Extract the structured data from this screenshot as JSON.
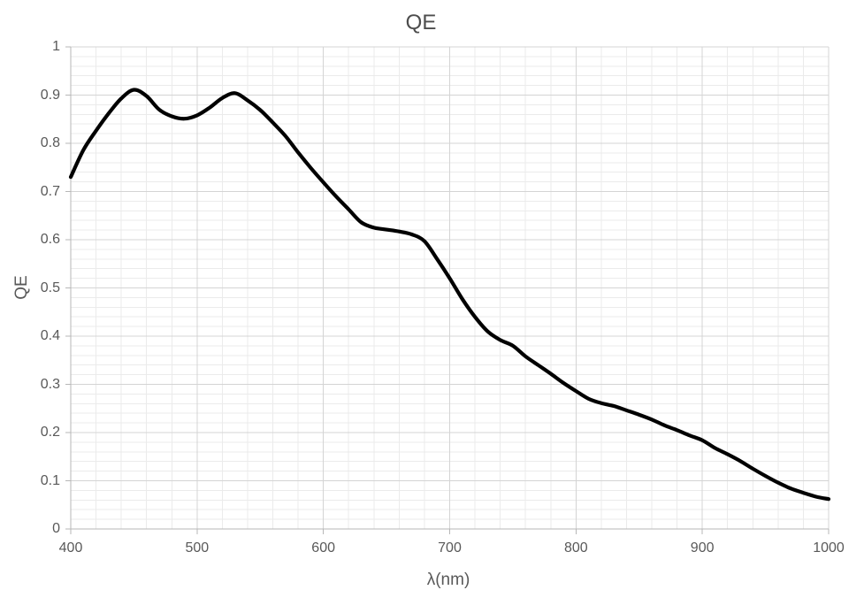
{
  "title": "QE",
  "axes": {
    "x": {
      "title": "λ(nm)",
      "min": 400,
      "max": 1000,
      "major_unit": 100,
      "minor_unit": 20,
      "tick_labels": [
        "400",
        "500",
        "600",
        "700",
        "800",
        "900",
        "1000"
      ]
    },
    "y": {
      "title": "QE",
      "min": 0,
      "max": 1,
      "major_unit": 0.1,
      "minor_unit": 0.02,
      "tick_labels": [
        "0",
        "0.1",
        "0.2",
        "0.3",
        "0.4",
        "0.5",
        "0.6",
        "0.7",
        "0.8",
        "0.9",
        "1"
      ]
    }
  },
  "colors": {
    "background": "#ffffff",
    "curve": "#000000",
    "major_gridline": "#d4d4d4",
    "minor_gridline": "#ebebeb",
    "axis_line": "#b7b7b7",
    "tick_text": "#595959",
    "title_text": "#4d4d4d"
  },
  "chart_data": {
    "type": "line",
    "title": "QE",
    "xlabel": "λ(nm)",
    "ylabel": "QE",
    "xlim": [
      400,
      1000
    ],
    "ylim": [
      0,
      1
    ],
    "grid": "major-and-minor",
    "legend": "none",
    "smooth": true,
    "line_width": 4.2,
    "x": [
      400,
      410,
      420,
      430,
      440,
      450,
      460,
      470,
      480,
      490,
      500,
      510,
      520,
      530,
      540,
      550,
      560,
      570,
      580,
      590,
      600,
      610,
      620,
      630,
      640,
      650,
      660,
      670,
      680,
      690,
      700,
      710,
      720,
      730,
      740,
      750,
      760,
      770,
      780,
      790,
      800,
      810,
      820,
      830,
      840,
      850,
      860,
      870,
      880,
      890,
      900,
      910,
      920,
      930,
      940,
      950,
      960,
      970,
      980,
      990,
      1000
    ],
    "values": [
      0.73,
      0.786,
      0.826,
      0.862,
      0.893,
      0.911,
      0.898,
      0.87,
      0.856,
      0.851,
      0.858,
      0.874,
      0.894,
      0.904,
      0.889,
      0.869,
      0.843,
      0.815,
      0.781,
      0.749,
      0.719,
      0.69,
      0.663,
      0.636,
      0.625,
      0.621,
      0.617,
      0.611,
      0.597,
      0.56,
      0.52,
      0.477,
      0.44,
      0.41,
      0.392,
      0.38,
      0.358,
      0.34,
      0.322,
      0.303,
      0.286,
      0.27,
      0.261,
      0.255,
      0.246,
      0.237,
      0.227,
      0.215,
      0.205,
      0.194,
      0.184,
      0.168,
      0.155,
      0.141,
      0.125,
      0.11,
      0.096,
      0.084,
      0.075,
      0.067,
      0.062
    ]
  }
}
